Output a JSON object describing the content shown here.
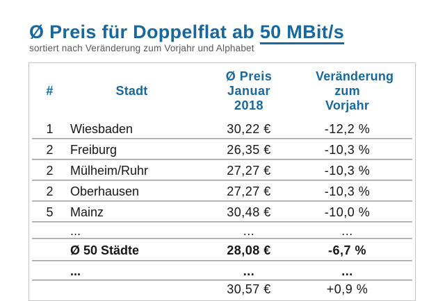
{
  "header": {
    "title_prefix": "Ø Preis für Doppelflat ab ",
    "title_link": "50 MBit/s",
    "subtitle": "sortiert nach Veränderung zum Vorjahr und Alphabet"
  },
  "colors": {
    "accent_blue": "#17689f",
    "subtitle_gray": "#58585a",
    "row_line_gray": "#9f9f9f",
    "table_border_gray": "#c6c6c6",
    "body_text": "#161616"
  },
  "table": {
    "columns": {
      "rank": "#",
      "stadt": "Stadt",
      "preis": "Ø Preis\nJanuar\n2018",
      "veraenderung": "Veränderung\nzum Vorjahr"
    },
    "rows": [
      {
        "rank": "1",
        "stadt": "Wiesbaden",
        "preis": "30,22 €",
        "veraenderung": "-12,2 %",
        "style": "normal"
      },
      {
        "rank": "2",
        "stadt": "Freiburg",
        "preis": "26,35 €",
        "veraenderung": "-10,3 %",
        "style": "normal"
      },
      {
        "rank": "2",
        "stadt": "Mülheim/Ruhr",
        "preis": "27,27 €",
        "veraenderung": "-10,3 %",
        "style": "normal"
      },
      {
        "rank": "2",
        "stadt": "Oberhausen",
        "preis": "27,27 €",
        "veraenderung": "-10,3 %",
        "style": "normal"
      },
      {
        "rank": "5",
        "stadt": "Mainz",
        "preis": "30,48 €",
        "veraenderung": "-10,0 %",
        "style": "normal"
      },
      {
        "rank": "",
        "stadt": "...",
        "preis": "...",
        "veraenderung": "...",
        "style": "ellipsis"
      },
      {
        "rank": "",
        "stadt": "Ø 50 Städte",
        "preis": "28,08 €",
        "veraenderung": "-6,7 %",
        "style": "summary"
      },
      {
        "rank": "",
        "stadt": "...",
        "preis": "...",
        "veraenderung": "...",
        "style": "ellipsis-bold"
      },
      {
        "rank": "",
        "stadt": "",
        "preis": "30,57 €",
        "veraenderung": "+0,9 %",
        "style": "partial"
      }
    ]
  }
}
